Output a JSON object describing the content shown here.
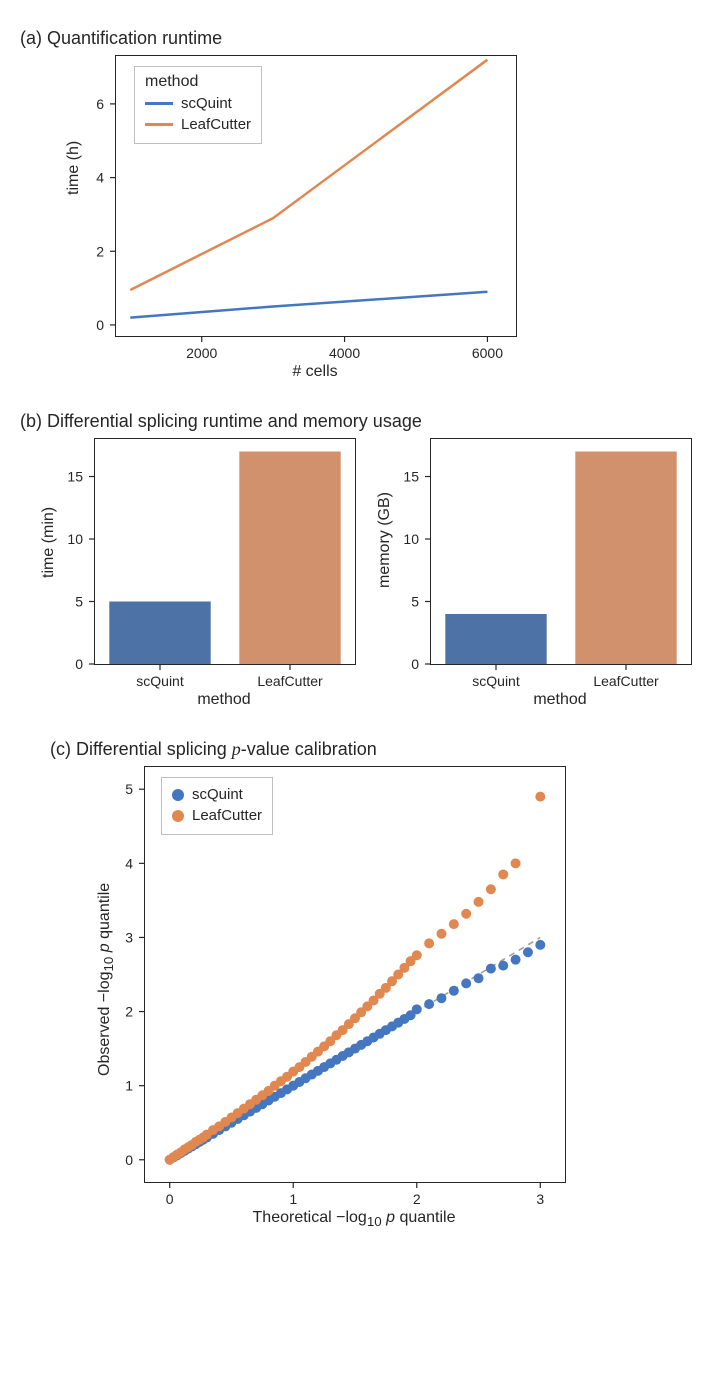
{
  "panel_a": {
    "title": "(a) Quantification runtime",
    "xlabel": "# cells",
    "ylabel": "time (h)",
    "xlim": [
      800,
      6400
    ],
    "ylim": [
      -0.3,
      7.3
    ],
    "xticks": [
      2000,
      4000,
      6000
    ],
    "yticks": [
      0,
      2,
      4,
      6
    ],
    "legend_title": "method",
    "series": [
      {
        "name": "scQuint",
        "color": "#4477c0",
        "points": [
          [
            1000,
            0.2
          ],
          [
            3000,
            0.5
          ],
          [
            6000,
            0.9
          ]
        ]
      },
      {
        "name": "LeafCutter",
        "color": "#e08850",
        "points": [
          [
            1000,
            0.95
          ],
          [
            3000,
            2.9
          ],
          [
            6000,
            7.2
          ]
        ]
      }
    ]
  },
  "panel_b": {
    "title": "(b) Differential splicing runtime and memory usage",
    "xlabel": "method",
    "categories": [
      "scQuint",
      "LeafCutter"
    ],
    "colors": [
      "#4c72a6",
      "#d2916d"
    ],
    "charts": [
      {
        "ylabel": "time (min)",
        "ylim": [
          0,
          18
        ],
        "yticks": [
          0,
          5,
          10,
          15
        ],
        "values": [
          5,
          17
        ]
      },
      {
        "ylabel": "memory (GB)",
        "ylim": [
          0,
          18
        ],
        "yticks": [
          0,
          5,
          10,
          15
        ],
        "values": [
          4,
          17
        ]
      }
    ]
  },
  "panel_c": {
    "title_prefix": "(c) Differential splicing ",
    "title_ital": "p",
    "title_suffix": "-value calibration",
    "xlabel_prefix": "Theoretical −log",
    "xlabel_sub": "10",
    "xlabel_ital": " p ",
    "xlabel_suffix": "quantile",
    "ylabel_prefix": "Observed −log",
    "ylabel_sub": "10",
    "ylabel_ital": " p ",
    "ylabel_suffix": "quantile",
    "xlim": [
      -0.2,
      3.2
    ],
    "ylim": [
      -0.3,
      5.3
    ],
    "xticks": [
      0,
      1,
      2,
      3
    ],
    "yticks": [
      0,
      1,
      2,
      3,
      4,
      5
    ],
    "diag_line": [
      [
        0,
        0
      ],
      [
        3,
        3
      ]
    ],
    "diag_color": "#a0a0a0",
    "series": [
      {
        "name": "scQuint",
        "color": "#4477c0",
        "marker_r": 5,
        "points": [
          [
            0,
            0
          ],
          [
            0.03,
            0.03
          ],
          [
            0.06,
            0.06
          ],
          [
            0.09,
            0.09
          ],
          [
            0.12,
            0.12
          ],
          [
            0.15,
            0.15
          ],
          [
            0.18,
            0.18
          ],
          [
            0.21,
            0.21
          ],
          [
            0.24,
            0.24
          ],
          [
            0.27,
            0.27
          ],
          [
            0.3,
            0.3
          ],
          [
            0.35,
            0.35
          ],
          [
            0.4,
            0.4
          ],
          [
            0.45,
            0.45
          ],
          [
            0.5,
            0.5
          ],
          [
            0.55,
            0.55
          ],
          [
            0.6,
            0.6
          ],
          [
            0.65,
            0.65
          ],
          [
            0.7,
            0.7
          ],
          [
            0.75,
            0.75
          ],
          [
            0.8,
            0.8
          ],
          [
            0.85,
            0.85
          ],
          [
            0.9,
            0.9
          ],
          [
            0.95,
            0.95
          ],
          [
            1.0,
            1.0
          ],
          [
            1.05,
            1.05
          ],
          [
            1.1,
            1.1
          ],
          [
            1.15,
            1.15
          ],
          [
            1.2,
            1.2
          ],
          [
            1.25,
            1.25
          ],
          [
            1.3,
            1.3
          ],
          [
            1.35,
            1.35
          ],
          [
            1.4,
            1.4
          ],
          [
            1.45,
            1.45
          ],
          [
            1.5,
            1.5
          ],
          [
            1.55,
            1.55
          ],
          [
            1.6,
            1.6
          ],
          [
            1.65,
            1.65
          ],
          [
            1.7,
            1.7
          ],
          [
            1.75,
            1.75
          ],
          [
            1.8,
            1.8
          ],
          [
            1.85,
            1.85
          ],
          [
            1.9,
            1.9
          ],
          [
            1.95,
            1.95
          ],
          [
            2.0,
            2.03
          ],
          [
            2.1,
            2.1
          ],
          [
            2.2,
            2.18
          ],
          [
            2.3,
            2.28
          ],
          [
            2.4,
            2.38
          ],
          [
            2.5,
            2.45
          ],
          [
            2.6,
            2.58
          ],
          [
            2.7,
            2.62
          ],
          [
            2.8,
            2.7
          ],
          [
            2.9,
            2.8
          ],
          [
            3.0,
            2.9
          ]
        ]
      },
      {
        "name": "LeafCutter",
        "color": "#e08850",
        "marker_r": 5,
        "points": [
          [
            0,
            0
          ],
          [
            0.03,
            0.035
          ],
          [
            0.06,
            0.07
          ],
          [
            0.09,
            0.1
          ],
          [
            0.12,
            0.14
          ],
          [
            0.15,
            0.17
          ],
          [
            0.18,
            0.2
          ],
          [
            0.21,
            0.24
          ],
          [
            0.24,
            0.27
          ],
          [
            0.27,
            0.3
          ],
          [
            0.3,
            0.34
          ],
          [
            0.35,
            0.4
          ],
          [
            0.4,
            0.45
          ],
          [
            0.45,
            0.51
          ],
          [
            0.5,
            0.57
          ],
          [
            0.55,
            0.63
          ],
          [
            0.6,
            0.69
          ],
          [
            0.65,
            0.75
          ],
          [
            0.7,
            0.81
          ],
          [
            0.75,
            0.87
          ],
          [
            0.8,
            0.93
          ],
          [
            0.85,
            1.0
          ],
          [
            0.9,
            1.06
          ],
          [
            0.95,
            1.12
          ],
          [
            1.0,
            1.19
          ],
          [
            1.05,
            1.25
          ],
          [
            1.1,
            1.32
          ],
          [
            1.15,
            1.39
          ],
          [
            1.2,
            1.46
          ],
          [
            1.25,
            1.53
          ],
          [
            1.3,
            1.6
          ],
          [
            1.35,
            1.68
          ],
          [
            1.4,
            1.75
          ],
          [
            1.45,
            1.83
          ],
          [
            1.5,
            1.91
          ],
          [
            1.55,
            1.99
          ],
          [
            1.6,
            2.07
          ],
          [
            1.65,
            2.15
          ],
          [
            1.7,
            2.24
          ],
          [
            1.75,
            2.32
          ],
          [
            1.8,
            2.41
          ],
          [
            1.85,
            2.5
          ],
          [
            1.9,
            2.59
          ],
          [
            1.95,
            2.68
          ],
          [
            2.0,
            2.76
          ],
          [
            2.1,
            2.92
          ],
          [
            2.2,
            3.05
          ],
          [
            2.3,
            3.18
          ],
          [
            2.4,
            3.32
          ],
          [
            2.5,
            3.48
          ],
          [
            2.6,
            3.65
          ],
          [
            2.7,
            3.85
          ],
          [
            2.8,
            4.0
          ],
          [
            3.0,
            4.9
          ]
        ]
      }
    ]
  }
}
